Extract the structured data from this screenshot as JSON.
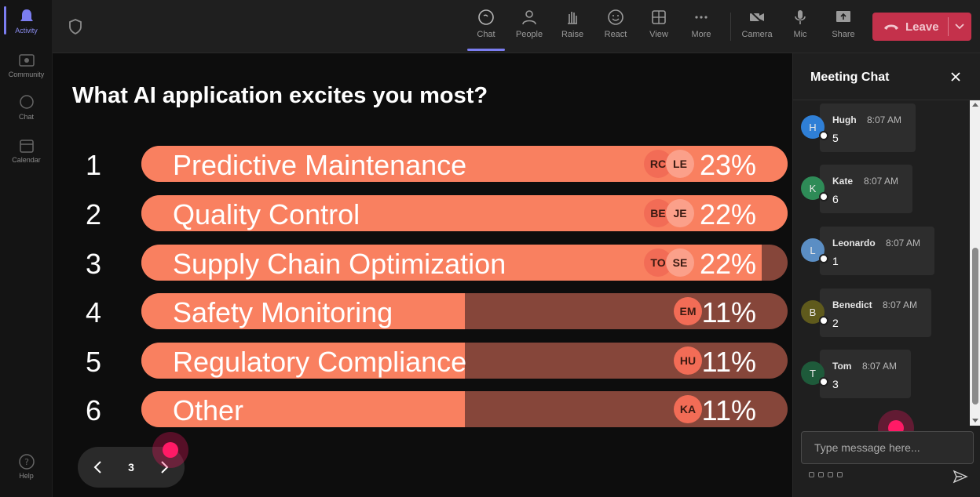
{
  "rail": {
    "items": [
      {
        "label": "Activity",
        "icon": "bell-icon",
        "active": true
      },
      {
        "label": "Community",
        "icon": "community-icon"
      },
      {
        "label": "Chat",
        "icon": "chat-icon"
      },
      {
        "label": "Calendar",
        "icon": "calendar-icon"
      }
    ],
    "help_label": "Help"
  },
  "toolbar": {
    "chat": "Chat",
    "people": "People",
    "raise": "Raise",
    "react": "React",
    "view": "View",
    "more": "More",
    "camera": "Camera",
    "mic": "Mic",
    "share": "Share",
    "leave": "Leave",
    "leave_color": "#c4314b",
    "active": "Chat"
  },
  "poll": {
    "title": "What AI application excites you most?",
    "options": [
      {
        "num": "1",
        "label": "Predictive Maintenance",
        "pct": "23%",
        "fill": 1.0,
        "avatars": [
          "RC",
          "LE"
        ]
      },
      {
        "num": "2",
        "label": "Quality Control",
        "pct": "22%",
        "fill": 1.0,
        "avatars": [
          "BE",
          "JE"
        ]
      },
      {
        "num": "3",
        "label": "Supply Chain Optimization",
        "pct": "22%",
        "fill": 0.96,
        "avatars": [
          "TO",
          "SE"
        ]
      },
      {
        "num": "4",
        "label": "Safety Monitoring",
        "pct": "11%",
        "fill": 0.5,
        "avatars": [
          "EM"
        ]
      },
      {
        "num": "5",
        "label": "Regulatory Compliance",
        "pct": "11%",
        "fill": 0.5,
        "avatars": [
          "HU"
        ]
      },
      {
        "num": "6",
        "label": "Other",
        "pct": "11%",
        "fill": 0.5,
        "avatars": [
          "KA"
        ]
      }
    ],
    "page": "3"
  },
  "chat": {
    "title": "Meeting Chat",
    "messages": [
      {
        "initial": "H",
        "name": "Hugh",
        "time": "8:07 AM",
        "text": "5",
        "color": "#2f7fd6"
      },
      {
        "initial": "K",
        "name": "Kate",
        "time": "8:07 AM",
        "text": "6",
        "color": "#2e8b57"
      },
      {
        "initial": "L",
        "name": "Leonardo",
        "time": "8:07 AM",
        "text": "1",
        "color": "#5b8ec4"
      },
      {
        "initial": "B",
        "name": "Benedict",
        "time": "8:07 AM",
        "text": "2",
        "color": "#5f5a1c"
      },
      {
        "initial": "T",
        "name": "Tom",
        "time": "8:07 AM",
        "text": "3",
        "color": "#1e5a3a"
      }
    ],
    "compose_placeholder": "Type message here..."
  }
}
